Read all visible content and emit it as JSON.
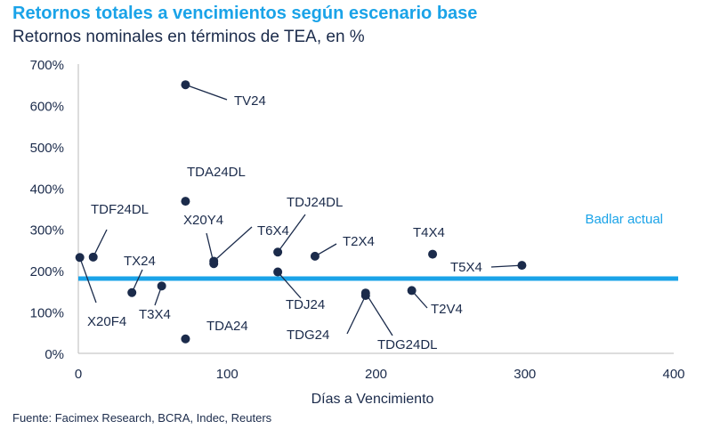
{
  "header": {
    "title": "Retornos totales a vencimientos según escenario base",
    "subtitle": "Retornos nominales en términos de TEA, en %"
  },
  "footer": {
    "source": "Fuente: Facimex Research, BCRA, Indec, Reuters"
  },
  "colors": {
    "title": "#1aa3e8",
    "text": "#1b2b4b",
    "points": "#1b2b4b",
    "reference_line": "#1aa3e8",
    "axis": "#bbbbbb"
  },
  "chart_data": {
    "type": "scatter",
    "title": "",
    "xlabel": "Días a Vencimiento",
    "ylabel": "",
    "xlim": [
      0,
      400
    ],
    "ylim": [
      0,
      700
    ],
    "x_ticks": [
      "0",
      "100",
      "200",
      "300",
      "400"
    ],
    "y_ticks": [
      "0%",
      "100%",
      "200%",
      "300%",
      "400%",
      "500%",
      "600%",
      "700%"
    ],
    "grid": false,
    "points": [
      {
        "label": "TV24",
        "x": 72,
        "y": 650
      },
      {
        "label": "TDA24DL",
        "x": 72,
        "y": 368
      },
      {
        "label": "TDA24",
        "x": 72,
        "y": 35
      },
      {
        "label": "TDF24DL",
        "x": 10,
        "y": 233
      },
      {
        "label": "X20F4",
        "x": 1,
        "y": 232
      },
      {
        "label": "TX24",
        "x": 36,
        "y": 147
      },
      {
        "label": "T3X4",
        "x": 56,
        "y": 163
      },
      {
        "label": "X20Y4",
        "x": 91,
        "y": 217
      },
      {
        "label": "T6X4",
        "x": 91,
        "y": 223
      },
      {
        "label": "TDJ24DL",
        "x": 134,
        "y": 245
      },
      {
        "label": "TDJ24",
        "x": 134,
        "y": 197
      },
      {
        "label": "T2X4",
        "x": 159,
        "y": 235
      },
      {
        "label": "TDG24",
        "x": 193,
        "y": 140
      },
      {
        "label": "TDG24DL",
        "x": 193,
        "y": 146
      },
      {
        "label": "T4X4",
        "x": 238,
        "y": 240
      },
      {
        "label": "T2V4",
        "x": 224,
        "y": 152
      },
      {
        "label": "T5X4",
        "x": 298,
        "y": 213
      }
    ],
    "reference_line": {
      "label": "Badlar actual",
      "y": 181
    }
  }
}
